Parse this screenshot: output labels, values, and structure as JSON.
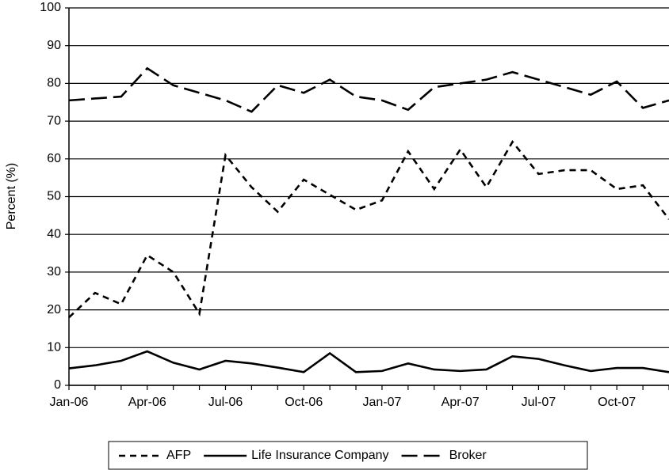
{
  "chart_data": {
    "type": "line",
    "y_label": "Percent (%)",
    "categories": [
      "Jan-06",
      null,
      null,
      "Apr-06",
      null,
      null,
      "Jul-06",
      null,
      null,
      "Oct-06",
      null,
      null,
      "Jan-07",
      null,
      null,
      "Apr-07",
      null,
      null,
      "Jul-07",
      null,
      null,
      "Oct-07",
      null,
      null
    ],
    "series": [
      {
        "name": "AFP",
        "color": "#000000",
        "line_style": "short-dash",
        "values": [
          18,
          24.5,
          21.5,
          34.5,
          30,
          19,
          61,
          52.5,
          46,
          54.5,
          50.5,
          46.5,
          49,
          62,
          52,
          62.5,
          52.5,
          64.5,
          56,
          57,
          57,
          52,
          53,
          44
        ]
      },
      {
        "name": "Life Insurance Company",
        "color": "#000000",
        "line_style": "solid",
        "values": [
          4.5,
          5.3,
          6.5,
          9,
          6,
          4.2,
          6.5,
          5.8,
          4.7,
          3.5,
          8.5,
          3.5,
          3.8,
          5.8,
          4.2,
          3.8,
          4.2,
          7.7,
          7,
          5.3,
          3.8,
          4.6,
          4.6,
          3.5
        ]
      },
      {
        "name": "Broker",
        "color": "#000000",
        "line_style": "long-dash",
        "values": [
          75.5,
          76,
          76.5,
          84,
          79.5,
          77.5,
          75.5,
          72.5,
          79.5,
          77.5,
          81,
          76.5,
          75.5,
          73,
          79,
          80,
          81,
          83,
          81,
          79,
          77,
          80.5,
          73.5,
          75.5
        ]
      }
    ],
    "ylim": [
      0,
      100
    ],
    "yticks": [
      0,
      10,
      20,
      30,
      40,
      50,
      60,
      70,
      80,
      90,
      100
    ],
    "grid": true,
    "legend": "bottom"
  }
}
